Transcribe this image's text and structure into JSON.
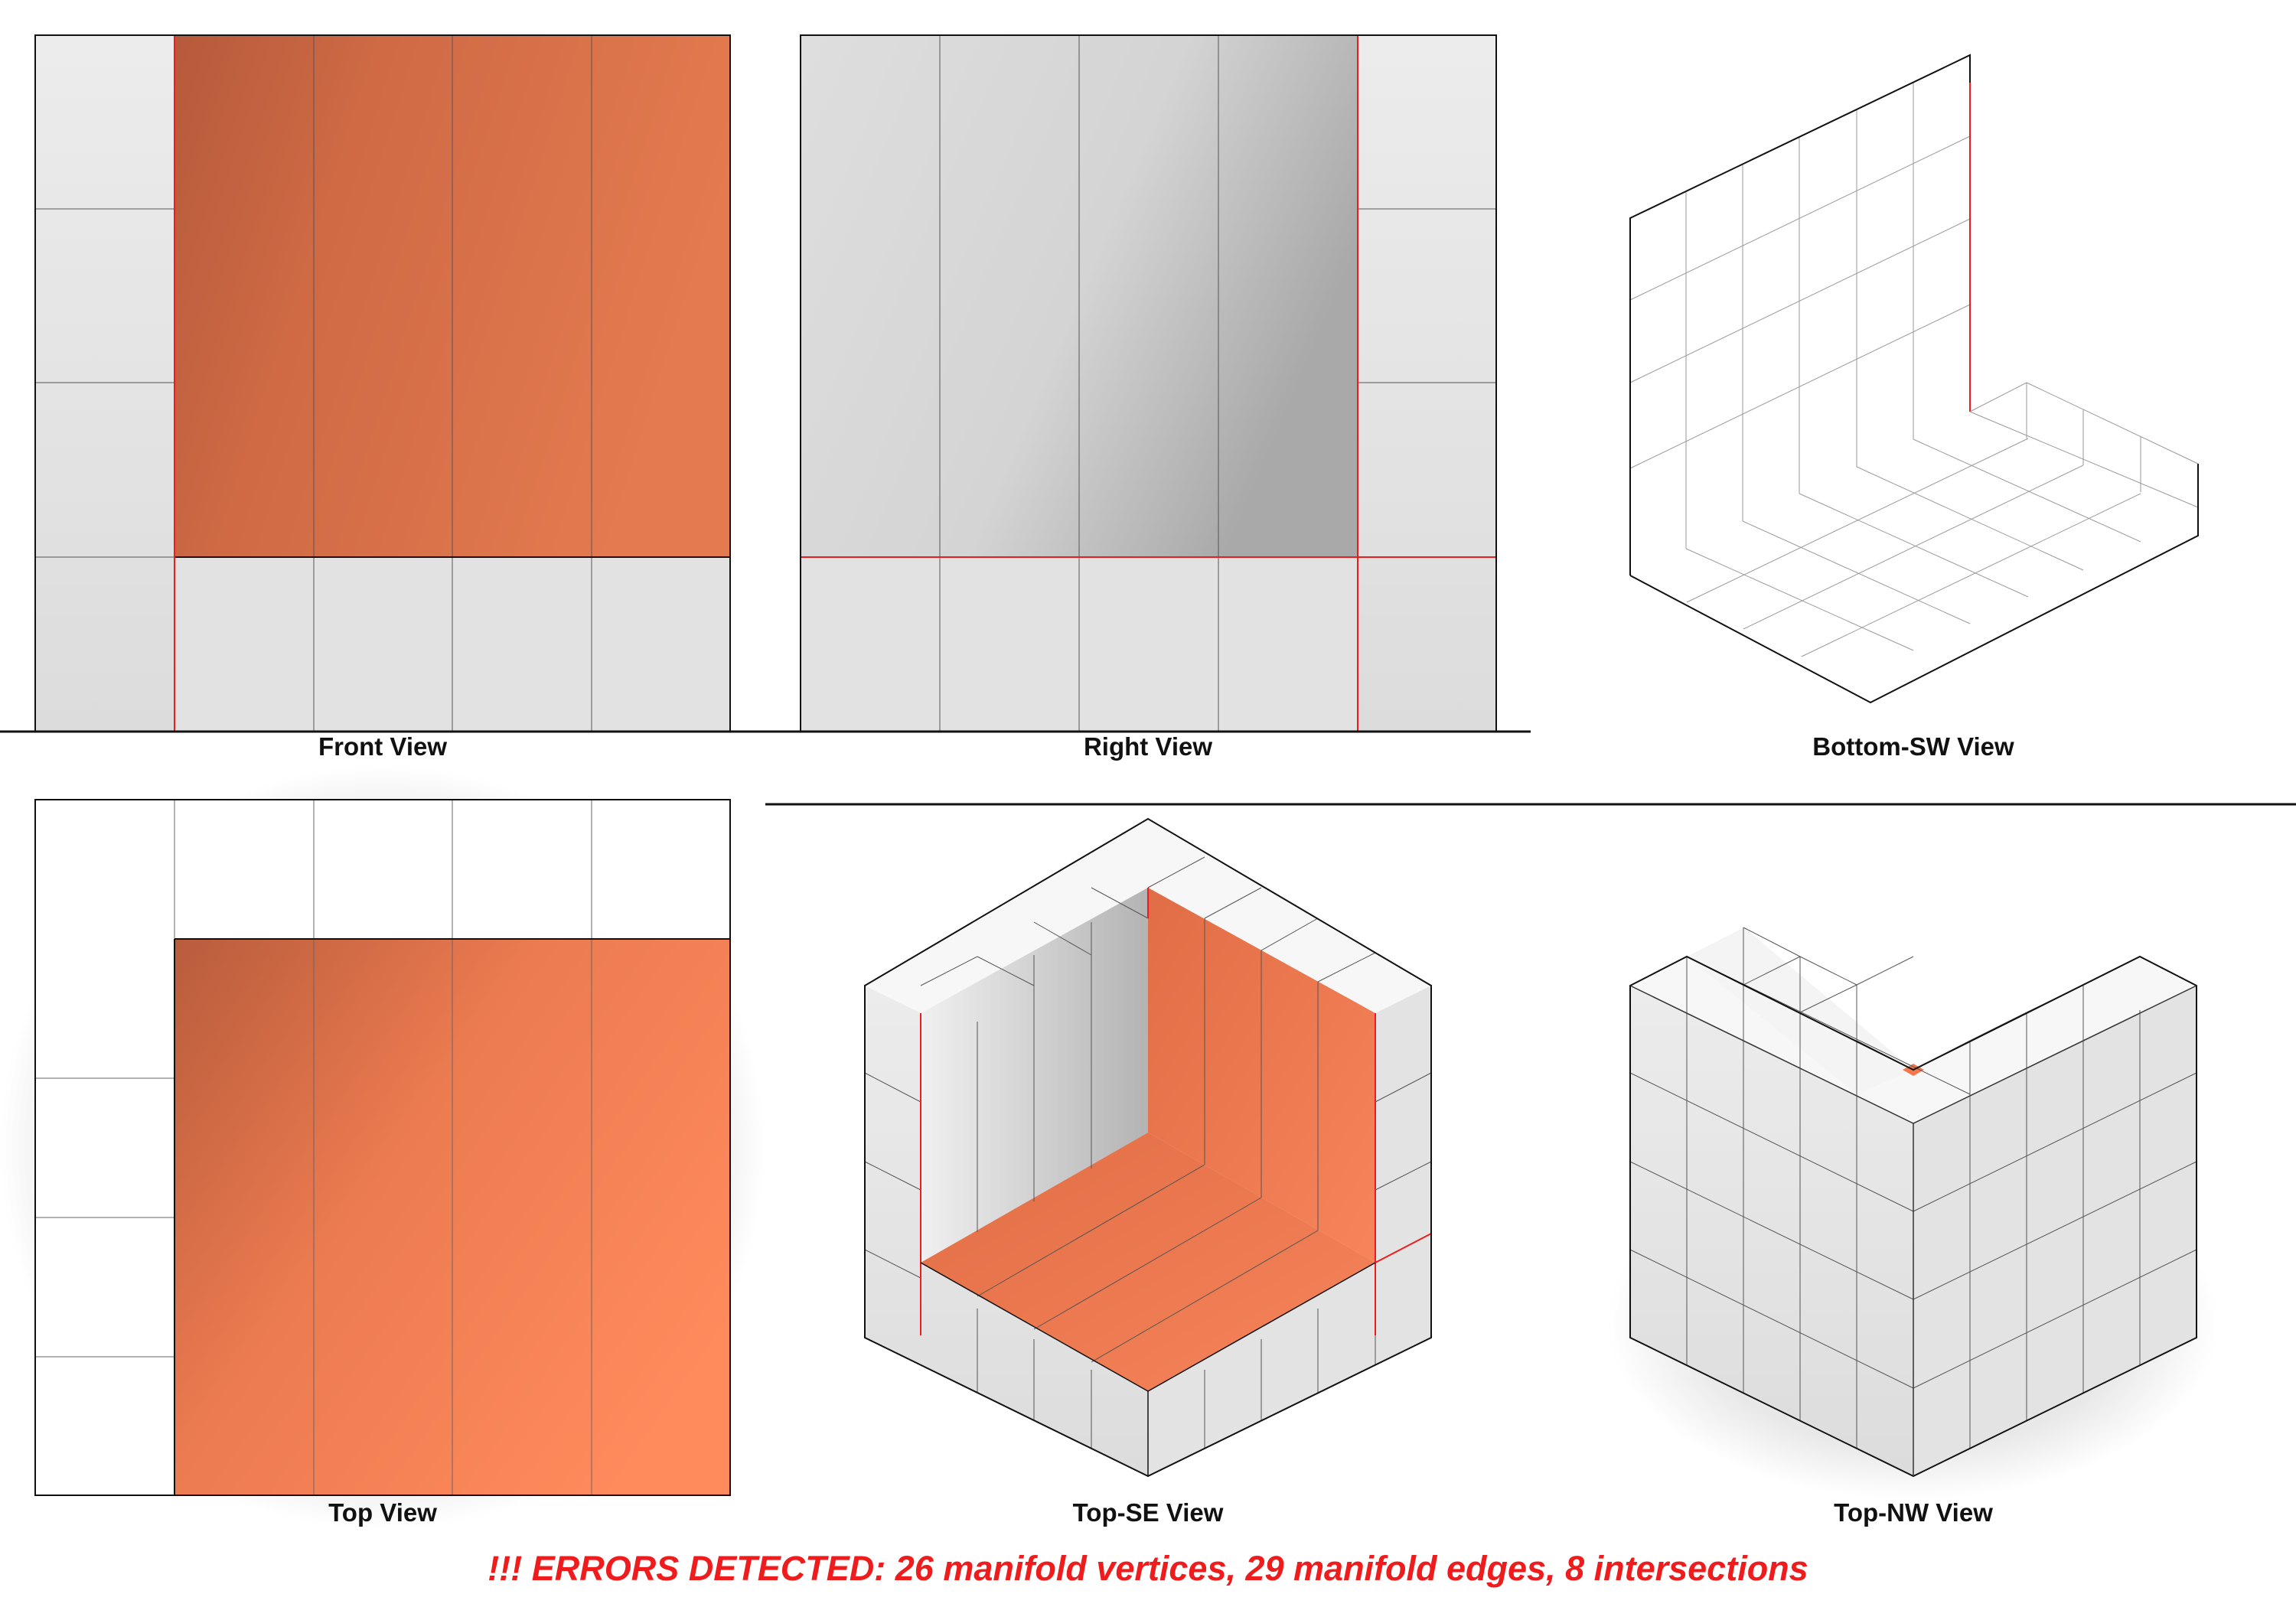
{
  "views": {
    "front": {
      "label": "Front View"
    },
    "right": {
      "label": "Right View"
    },
    "bottom_sw": {
      "label": "Bottom-SW View"
    },
    "top": {
      "label": "Top View"
    },
    "top_se": {
      "label": "Top-SE View"
    },
    "top_nw": {
      "label": "Top-NW View"
    }
  },
  "error_message": "!!! ERRORS DETECTED: 26 manifold vertices, 29 manifold edges, 8 intersections",
  "colors": {
    "accent_orange": "#f2784b",
    "error_red": "#ee1c1c",
    "panel_gray": "#e6e6e6",
    "edge_dark": "#1a1a1a"
  }
}
